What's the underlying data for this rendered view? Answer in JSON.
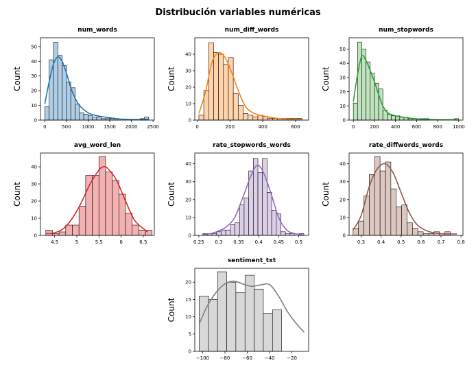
{
  "figure": {
    "title": "Distribución variables numéricas",
    "ylabel": "Count"
  },
  "chart_data": [
    {
      "type": "bar",
      "title": "num_words",
      "xlabel": "",
      "ylabel": "Count",
      "bins_start": 0,
      "bin_width": 100,
      "values": [
        9,
        41,
        53,
        44,
        37,
        26,
        22,
        11,
        5,
        4,
        3,
        2,
        2,
        1,
        1,
        1,
        1,
        0,
        0,
        0,
        0,
        0,
        1,
        2
      ],
      "kde": [
        [
          0,
          11
        ],
        [
          100,
          26
        ],
        [
          200,
          38
        ],
        [
          300,
          43
        ],
        [
          400,
          40
        ],
        [
          500,
          32
        ],
        [
          600,
          22
        ],
        [
          700,
          15
        ],
        [
          800,
          10
        ],
        [
          1000,
          5
        ],
        [
          1200,
          3
        ],
        [
          1400,
          2
        ],
        [
          1600,
          1.2
        ],
        [
          1800,
          0.6
        ],
        [
          2000,
          0.4
        ],
        [
          2200,
          0.4
        ],
        [
          2400,
          0.5
        ]
      ],
      "xlim": [
        -100,
        2530
      ],
      "ylim": [
        0,
        56
      ],
      "xticks": [
        0,
        500,
        1000,
        1500,
        2000,
        2500
      ],
      "yticks": [
        0,
        10,
        20,
        30,
        40,
        50
      ],
      "color": "#1f77b4",
      "fill": "#afcde4"
    },
    {
      "type": "bar",
      "title": "num_diff_words",
      "xlabel": "",
      "ylabel": "Count",
      "bins_start": 10,
      "bin_width": 30,
      "values": [
        3,
        18,
        47,
        41,
        40,
        34,
        38,
        16,
        9,
        4,
        3,
        2,
        3,
        2,
        1,
        1,
        1,
        1,
        1,
        1,
        1
      ],
      "kde": [
        [
          10,
          4
        ],
        [
          50,
          17
        ],
        [
          90,
          35
        ],
        [
          130,
          41
        ],
        [
          170,
          38
        ],
        [
          210,
          29
        ],
        [
          250,
          18
        ],
        [
          290,
          9
        ],
        [
          330,
          5
        ],
        [
          380,
          3
        ],
        [
          430,
          2
        ],
        [
          480,
          1.2
        ],
        [
          530,
          0.7
        ],
        [
          580,
          0.5
        ],
        [
          640,
          0.4
        ]
      ],
      "xlim": [
        -15,
        680
      ],
      "ylim": [
        0,
        50
      ],
      "xticks": [
        0,
        200,
        400,
        600
      ],
      "yticks": [
        0,
        10,
        20,
        30,
        40
      ],
      "color": "#ff7f0e",
      "fill": "#ffd4ab"
    },
    {
      "type": "bar",
      "title": "num_stopwords",
      "xlabel": "",
      "ylabel": "Count",
      "bins_start": 0,
      "bin_width": 40,
      "values": [
        12,
        55,
        50,
        41,
        33,
        26,
        22,
        7,
        4,
        3,
        3,
        2,
        2,
        1,
        1,
        1,
        1,
        1,
        0,
        0,
        0,
        0,
        0,
        0,
        1
      ],
      "kde": [
        [
          0,
          13
        ],
        [
          40,
          32
        ],
        [
          80,
          45
        ],
        [
          120,
          42
        ],
        [
          160,
          35
        ],
        [
          200,
          27
        ],
        [
          240,
          18
        ],
        [
          280,
          10
        ],
        [
          330,
          5
        ],
        [
          400,
          3
        ],
        [
          480,
          2
        ],
        [
          560,
          1.2
        ],
        [
          640,
          0.7
        ],
        [
          720,
          0.4
        ],
        [
          800,
          0.3
        ],
        [
          880,
          0.3
        ],
        [
          980,
          0.3
        ]
      ],
      "xlim": [
        -40,
        1040
      ],
      "ylim": [
        0,
        58
      ],
      "xticks": [
        0,
        200,
        400,
        600,
        800,
        1000
      ],
      "yticks": [
        0,
        10,
        20,
        30,
        40,
        50
      ],
      "color": "#2ca02c",
      "fill": "#bee3be"
    },
    {
      "type": "bar",
      "title": "avg_word_len",
      "xlabel": "",
      "ylabel": "Count",
      "bins_start": 4.3,
      "bin_width": 0.15,
      "values": [
        3,
        1,
        2,
        6,
        6,
        17,
        35,
        35,
        46,
        37,
        32,
        24,
        13,
        6,
        3,
        3
      ],
      "kde": [
        [
          4.3,
          1
        ],
        [
          4.5,
          1.5
        ],
        [
          4.7,
          4
        ],
        [
          4.9,
          10
        ],
        [
          5.1,
          19
        ],
        [
          5.3,
          30
        ],
        [
          5.5,
          38
        ],
        [
          5.6,
          40
        ],
        [
          5.7,
          39
        ],
        [
          5.9,
          32
        ],
        [
          6.1,
          20
        ],
        [
          6.3,
          9
        ],
        [
          6.5,
          4
        ],
        [
          6.6,
          2
        ]
      ],
      "xlim": [
        4.18,
        6.75
      ],
      "ylim": [
        0,
        48
      ],
      "xticks": [
        4.5,
        5.0,
        5.5,
        6.0,
        6.5
      ],
      "yticks": [
        0,
        10,
        20,
        30,
        40
      ],
      "color": "#d62728",
      "fill": "#f3b1b1"
    },
    {
      "type": "bar",
      "title": "rate_stopwords_words",
      "xlabel": "",
      "ylabel": "Count",
      "bins_start": 0.26,
      "bin_width": 0.0115,
      "values": [
        1,
        1,
        1,
        2,
        3,
        3,
        6,
        7,
        17,
        21,
        36,
        43,
        35,
        43,
        24,
        14,
        12,
        2,
        1,
        1,
        0,
        1
      ],
      "kde": [
        [
          0.26,
          0.5
        ],
        [
          0.28,
          1
        ],
        [
          0.3,
          2.5
        ],
        [
          0.32,
          5
        ],
        [
          0.34,
          10
        ],
        [
          0.36,
          21
        ],
        [
          0.38,
          33
        ],
        [
          0.395,
          39
        ],
        [
          0.41,
          36
        ],
        [
          0.43,
          24
        ],
        [
          0.45,
          10
        ],
        [
          0.47,
          3
        ],
        [
          0.49,
          1
        ],
        [
          0.51,
          0.5
        ]
      ],
      "xlim": [
        0.24,
        0.525
      ],
      "ylim": [
        0,
        46
      ],
      "xticks": [
        0.25,
        0.3,
        0.35,
        0.4,
        0.45,
        0.5
      ],
      "yticks": [
        0,
        10,
        20,
        30,
        40
      ],
      "color": "#9467bd",
      "fill": "#dccfe8"
    },
    {
      "type": "bar",
      "title": "rate_diffwords_words",
      "xlabel": "",
      "ylabel": "Count",
      "bins_start": 0.26,
      "bin_width": 0.027,
      "values": [
        4,
        8,
        22,
        34,
        44,
        36,
        41,
        26,
        16,
        17,
        7,
        4,
        2,
        1,
        1,
        2,
        1,
        2
      ],
      "kde": [
        [
          0.26,
          3
        ],
        [
          0.3,
          11
        ],
        [
          0.34,
          27
        ],
        [
          0.38,
          37
        ],
        [
          0.42,
          40
        ],
        [
          0.46,
          35
        ],
        [
          0.5,
          24
        ],
        [
          0.54,
          13
        ],
        [
          0.58,
          6
        ],
        [
          0.62,
          3
        ],
        [
          0.66,
          1.5
        ],
        [
          0.7,
          1
        ],
        [
          0.74,
          0.8
        ],
        [
          0.78,
          0.8
        ]
      ],
      "xlim": [
        0.24,
        0.81
      ],
      "ylim": [
        0,
        46
      ],
      "xticks": [
        0.3,
        0.4,
        0.5,
        0.6,
        0.7,
        0.8
      ],
      "yticks": [
        0,
        10,
        20,
        30,
        40
      ],
      "color": "#8c564b",
      "fill": "#dcc7c1"
    },
    {
      "type": "bar",
      "title": "sentiment_txt",
      "xlabel": "",
      "ylabel": "Count",
      "bins_start": -103,
      "bin_width": 8.2,
      "values": [
        16,
        15,
        23,
        20,
        17,
        22,
        18,
        11,
        12
      ],
      "kde": [
        [
          -103,
          8
        ],
        [
          -96,
          13
        ],
        [
          -88,
          17
        ],
        [
          -80,
          19.5
        ],
        [
          -72,
          20.3
        ],
        [
          -64,
          19.5
        ],
        [
          -56,
          18.8
        ],
        [
          -48,
          19.2
        ],
        [
          -40,
          19.3
        ],
        [
          -32,
          16
        ],
        [
          -24,
          11.5
        ],
        [
          -16,
          8
        ],
        [
          -9,
          5.5
        ]
      ],
      "xlim": [
        -107,
        -5
      ],
      "ylim": [
        0,
        24
      ],
      "xticks": [
        -100,
        -80,
        -60,
        -40,
        -20
      ],
      "yticks": [
        0,
        5,
        10,
        15,
        20
      ],
      "color": "#7f7f7f",
      "fill": "#d8d8d8"
    }
  ]
}
